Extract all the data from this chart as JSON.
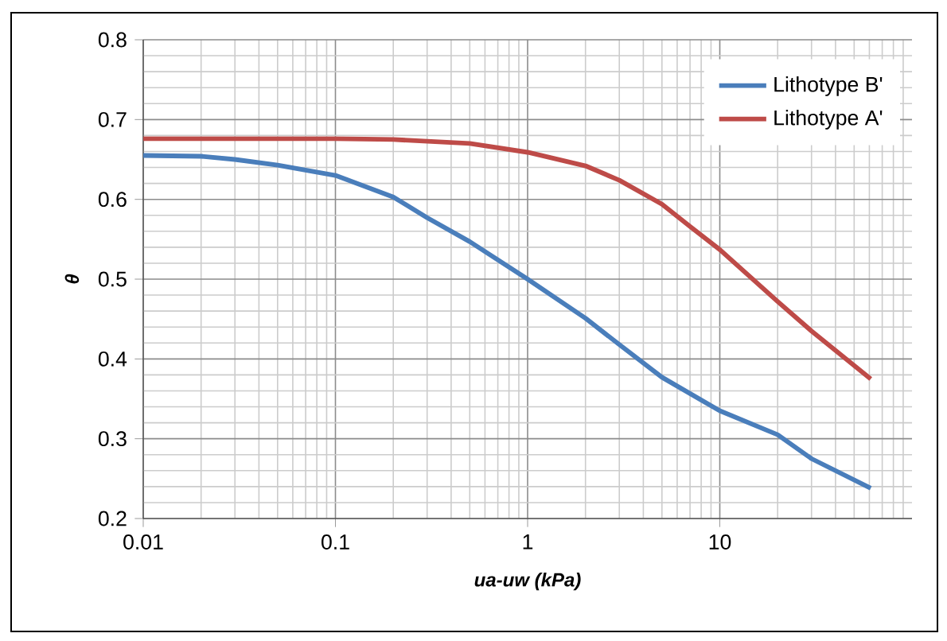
{
  "chart_data": {
    "type": "line",
    "xlabel": "ua-uw (kPa)",
    "ylabel": "θ",
    "log": "x",
    "xlim": [
      0.01,
      100
    ],
    "ylim": [
      0.2,
      0.8
    ],
    "xticks": [
      0.01,
      0.1,
      1,
      10
    ],
    "yticks": [
      0.2,
      0.3,
      0.4,
      0.5,
      0.6,
      0.7,
      0.8
    ],
    "grid": true,
    "legend": "top right",
    "marker": "none",
    "line_style": "solid",
    "series": [
      {
        "name": "Lithotype B'",
        "color": "#4a7ebb",
        "x": [
          0.01,
          0.02,
          0.03,
          0.05,
          0.1,
          0.2,
          0.3,
          0.5,
          1,
          2,
          3,
          5,
          10,
          20,
          30,
          61
        ],
        "values": [
          0.655,
          0.654,
          0.65,
          0.643,
          0.63,
          0.603,
          0.577,
          0.547,
          0.5,
          0.451,
          0.418,
          0.377,
          0.335,
          0.305,
          0.275,
          0.238
        ]
      },
      {
        "name": "Lithotype A'",
        "color": "#be4b48",
        "x": [
          0.01,
          0.05,
          0.1,
          0.2,
          0.5,
          1,
          2,
          3,
          5,
          7,
          10,
          20,
          30,
          61
        ],
        "values": [
          0.676,
          0.676,
          0.676,
          0.675,
          0.67,
          0.659,
          0.642,
          0.624,
          0.594,
          0.566,
          0.537,
          0.472,
          0.435,
          0.375
        ]
      }
    ]
  }
}
